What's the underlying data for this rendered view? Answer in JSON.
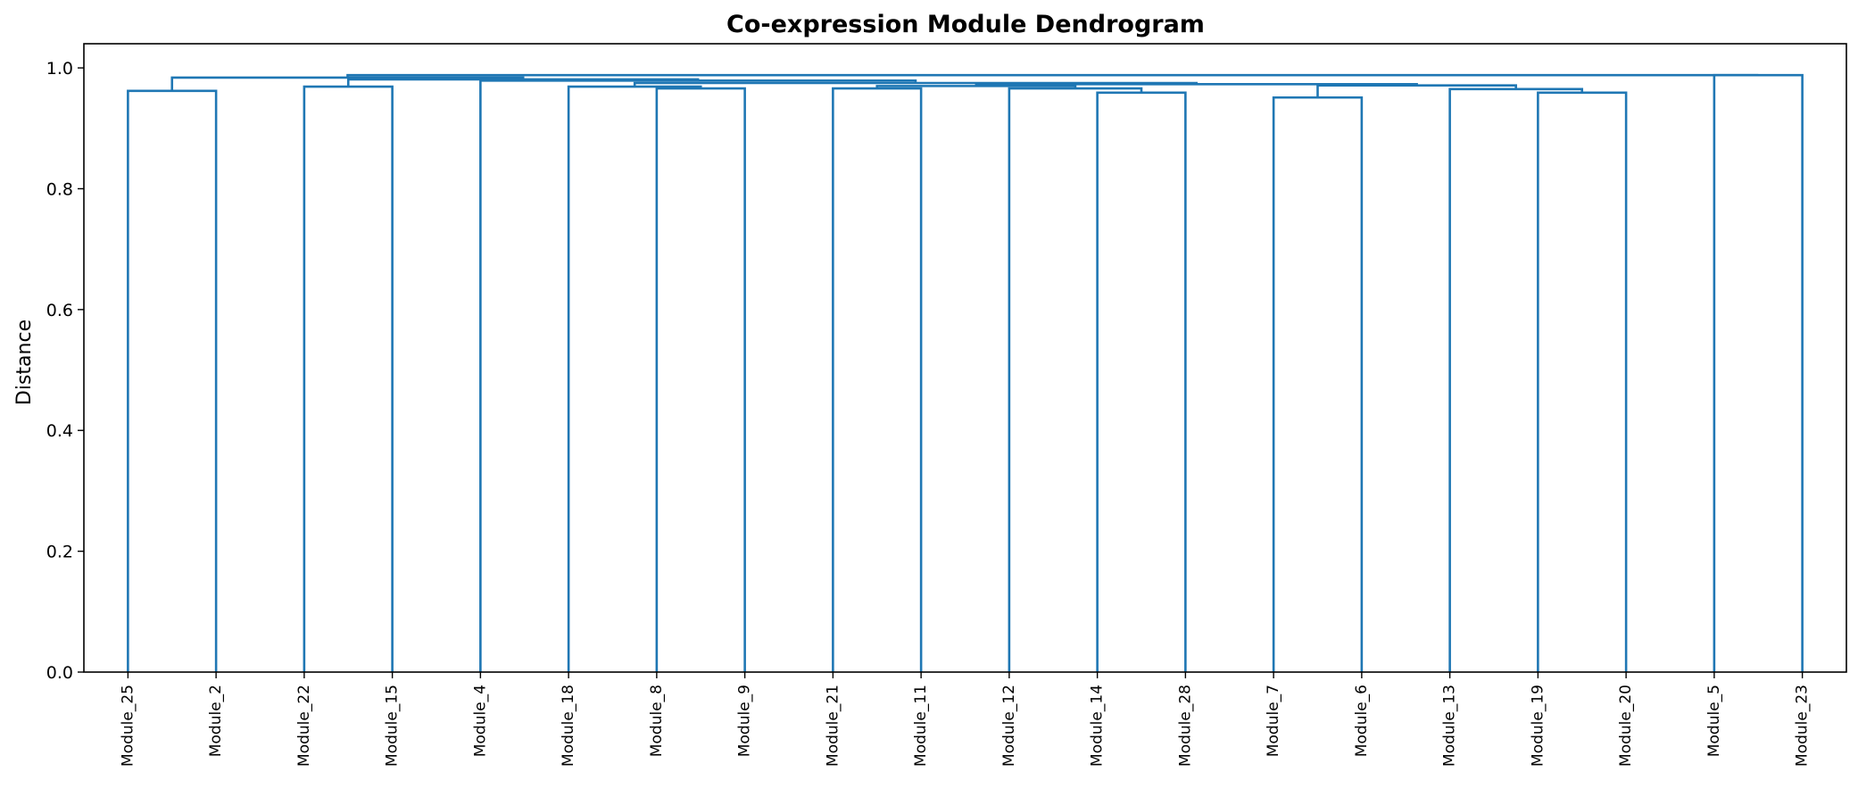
{
  "chart_data": {
    "type": "dendrogram",
    "title": "Co-expression Module Dendrogram",
    "xlabel": "",
    "ylabel": "Distance",
    "ylim": [
      0,
      1.04
    ],
    "yticks": [
      0.0,
      0.2,
      0.4,
      0.6,
      0.8,
      1.0
    ],
    "ytick_labels": [
      "0.0",
      "0.2",
      "0.4",
      "0.6",
      "0.8",
      "1.0"
    ],
    "leaves": [
      "Module_25",
      "Module_2",
      "Module_22",
      "Module_15",
      "Module_4",
      "Module_18",
      "Module_8",
      "Module_9",
      "Module_21",
      "Module_11",
      "Module_12",
      "Module_14",
      "Module_28",
      "Module_7",
      "Module_6",
      "Module_13",
      "Module_19",
      "Module_20",
      "Module_5",
      "Module_23"
    ],
    "color": "#1f77b4",
    "merges": [
      {
        "left": "Module_25",
        "right": "Module_2",
        "height": 0.962
      },
      {
        "left": "Module_22",
        "right": "Module_15",
        "height": 0.969
      },
      {
        "left": "Module_8",
        "right": "Module_9",
        "height": 0.966
      },
      {
        "left": "Module_18",
        "right": "Module_8+Module_9",
        "height": 0.969
      },
      {
        "left": "Module_21",
        "right": "Module_11",
        "height": 0.966
      },
      {
        "left": "Module_14",
        "right": "Module_28",
        "height": 0.959
      },
      {
        "left": "Module_12",
        "right": "Module_14+Module_28",
        "height": 0.966
      },
      {
        "left": "Module_21+Module_11",
        "right": "Module_12+Module_14+Module_28",
        "height": 0.97
      },
      {
        "left": "Module_7",
        "right": "Module_6",
        "height": 0.951
      },
      {
        "left": "Module_19",
        "right": "Module_20",
        "height": 0.959
      },
      {
        "left": "Module_13",
        "right": "Module_19+Module_20",
        "height": 0.965
      },
      {
        "left": "Module_7+Module_6",
        "right": "Module_13+Module_19+Module_20",
        "height": 0.971
      },
      {
        "left": "(Module_21..Module_28)",
        "right": "(Module_7..Module_20)",
        "height": 0.973
      },
      {
        "left": "(Module_18..Module_9)",
        "right": "(Module_21..Module_20)",
        "height": 0.975
      },
      {
        "left": "Module_4",
        "right": "(Module_18..Module_20)",
        "height": 0.979
      },
      {
        "left": "Module_22+Module_15",
        "right": "(Module_4..Module_20)",
        "height": 0.981
      },
      {
        "left": "Module_25+Module_2",
        "right": "(Module_22..Module_20)",
        "height": 0.984
      },
      {
        "left": "Module_5",
        "right": "Module_23",
        "height": 0.988
      },
      {
        "left": "(Module_25..Module_20)",
        "right": "Module_5+Module_23",
        "height": 0.988
      }
    ]
  }
}
